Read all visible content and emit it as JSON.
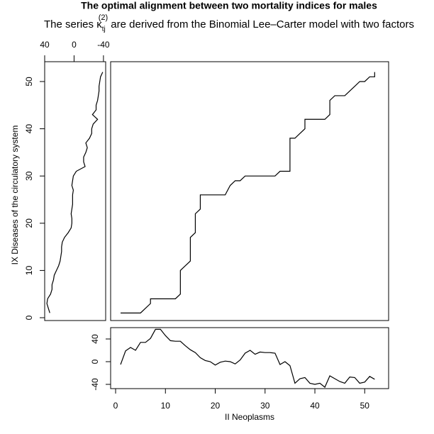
{
  "chart_data": [
    {
      "type": "line",
      "title": "The optimal alignment between two mortality indices for males",
      "subtitle": [
        "The series ",
        "κ",
        "tj",
        "(2)",
        " are derived from the Binomial Lee–Carter model with two factors"
      ],
      "x": [
        1,
        2,
        3,
        4,
        5,
        6,
        7,
        7,
        8,
        9,
        10,
        11,
        12,
        13,
        13,
        13,
        13,
        13,
        13,
        14,
        15,
        15,
        15,
        15,
        15,
        15,
        16,
        16,
        16,
        16,
        16,
        17,
        17,
        17,
        17,
        18,
        19,
        20,
        21,
        22,
        23,
        24,
        25,
        26,
        27,
        28,
        29,
        30,
        31,
        32,
        33,
        34,
        35,
        35,
        35,
        35,
        35,
        35,
        35,
        35,
        36,
        37,
        38,
        38,
        38,
        39,
        40,
        41,
        42,
        43,
        43,
        43,
        43,
        44,
        45,
        46,
        47,
        48,
        49,
        50,
        51,
        52,
        52
      ],
      "values": [
        1,
        1,
        1,
        1,
        1,
        2,
        3,
        4,
        4,
        4,
        4,
        4,
        4,
        5,
        6,
        7,
        8,
        9,
        10,
        11,
        12,
        13,
        14,
        15,
        16,
        17,
        18,
        19,
        20,
        21,
        22,
        23,
        24,
        25,
        26,
        26,
        26,
        26,
        26,
        26,
        28,
        29,
        29,
        30,
        30,
        30,
        30,
        30,
        30,
        30,
        31,
        31,
        31,
        32,
        33,
        34,
        35,
        36,
        37,
        38,
        38,
        39,
        40,
        41,
        42,
        42,
        42,
        42,
        42,
        43,
        44,
        45,
        46,
        47,
        47,
        47,
        48,
        49,
        50,
        50,
        51,
        51,
        52
      ],
      "xlim": [
        -1,
        54.8
      ],
      "ylim": [
        -0.6,
        54.2
      ]
    },
    {
      "type": "line",
      "orientation": "horizontal",
      "ylabel": "IX Diseases of the circulatory system",
      "x": [
        1,
        2,
        3,
        4,
        5,
        6,
        7,
        8,
        9,
        10,
        11,
        12,
        13,
        14,
        15,
        16,
        17,
        18,
        19,
        20,
        21,
        22,
        23,
        24,
        25,
        26,
        27,
        28,
        29,
        30,
        31,
        32,
        33,
        34,
        35,
        36,
        37,
        38,
        39,
        40,
        41,
        42,
        43,
        44,
        45,
        46,
        47,
        48,
        49,
        50,
        51,
        52
      ],
      "values": [
        33,
        35,
        37,
        36,
        32,
        30,
        30,
        28,
        27,
        24,
        21,
        19,
        18,
        17,
        17,
        16,
        13,
        8,
        4,
        3,
        3,
        4,
        3,
        2,
        2,
        2,
        1,
        3,
        2,
        1,
        -3,
        -15,
        -13,
        -13,
        -16,
        -18,
        -16,
        -21,
        -24,
        -24,
        -26,
        -32,
        -25,
        -30,
        -30,
        -32,
        -33,
        -34,
        -34,
        -35,
        -36,
        -39
      ],
      "xlim": [
        40,
        -43
      ],
      "xticks": [
        40,
        0,
        -40
      ],
      "ylim": [
        -0.6,
        54.2
      ],
      "yticks": [
        0,
        10,
        20,
        30,
        40,
        50
      ]
    },
    {
      "type": "line",
      "xlabel": "II Neoplasms",
      "x": [
        1,
        2,
        3,
        4,
        5,
        6,
        7,
        8,
        9,
        10,
        11,
        12,
        13,
        14,
        15,
        16,
        17,
        18,
        19,
        20,
        21,
        22,
        23,
        24,
        25,
        26,
        27,
        28,
        29,
        30,
        31,
        32,
        33,
        34,
        35,
        36,
        37,
        38,
        39,
        40,
        41,
        42,
        43,
        44,
        45,
        46,
        47,
        48,
        49,
        50,
        51,
        52
      ],
      "values": [
        -5,
        19,
        25,
        20,
        34,
        34,
        41,
        57,
        57,
        46,
        37,
        36,
        36,
        28,
        21,
        16,
        7,
        2,
        0,
        -6,
        -1,
        1,
        0,
        -4,
        3,
        15,
        20,
        13,
        17,
        16,
        16,
        15,
        -5,
        0,
        -7,
        -38,
        -30,
        -28,
        -38,
        -40,
        -38,
        -45,
        -25,
        -30,
        -35,
        -38,
        -27,
        -28,
        -38,
        -36,
        -26,
        -31
      ],
      "xlim": [
        -1,
        54.8
      ],
      "xticks": [
        0,
        10,
        20,
        30,
        40,
        50
      ],
      "ylim": [
        -47.5,
        60
      ],
      "yticks": [
        40,
        0,
        -40
      ]
    }
  ]
}
